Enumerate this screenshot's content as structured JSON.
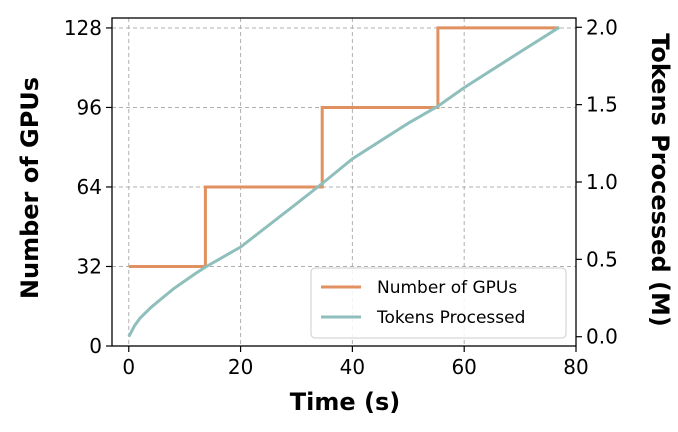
{
  "chart_data": {
    "type": "line",
    "xlabel": "Time (s)",
    "ylabel_left": "Number of GPUs",
    "ylabel_right": "Tokens Processed (M)",
    "xlim": [
      -3,
      80
    ],
    "ylim_left": [
      0,
      132
    ],
    "ylim_right": [
      -0.06,
      2.06
    ],
    "x_ticks": [
      0,
      20,
      40,
      60,
      80
    ],
    "y_left_ticks": [
      0,
      32,
      64,
      96,
      128
    ],
    "y_right_ticks": [
      "0.0",
      "0.5",
      "1.0",
      "1.5",
      "2.0"
    ],
    "y_right_tick_values": [
      0.0,
      0.5,
      1.0,
      1.5,
      2.0
    ],
    "grid": true,
    "legend_position": "lower-right",
    "series": [
      {
        "name": "Number of GPUs",
        "axis": "left",
        "color": "#e0915f",
        "step": true,
        "x": [
          0,
          13.7,
          13.7,
          34.6,
          34.6,
          55.3,
          55.3,
          77
        ],
        "y": [
          32,
          32,
          64,
          64,
          96,
          96,
          128,
          128
        ]
      },
      {
        "name": "Tokens Processed",
        "axis": "right",
        "color": "#8fbfbc",
        "x": [
          0,
          1,
          2,
          4,
          6,
          8,
          10,
          12,
          13.7,
          20,
          30,
          34.6,
          40,
          50,
          55.3,
          60,
          70,
          77
        ],
        "y": [
          0.0,
          0.07,
          0.12,
          0.19,
          0.25,
          0.31,
          0.36,
          0.41,
          0.45,
          0.58,
          0.86,
          0.99,
          1.15,
          1.38,
          1.49,
          1.61,
          1.84,
          2.0
        ]
      }
    ]
  }
}
